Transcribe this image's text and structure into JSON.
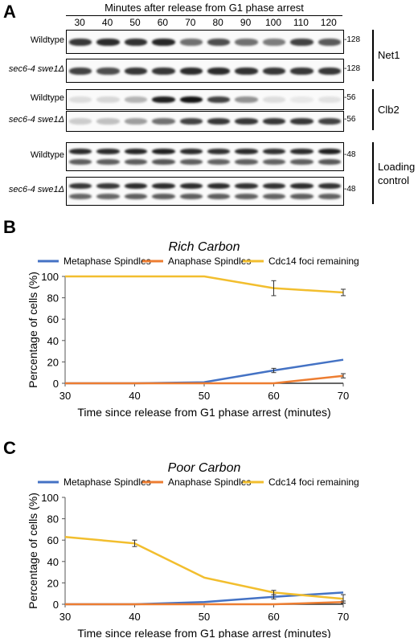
{
  "panelA": {
    "letter": "A",
    "time_header": "Minutes after release from G1 phase arrest",
    "timepoints": [
      "30",
      "40",
      "50",
      "60",
      "70",
      "80",
      "90",
      "100",
      "110",
      "120"
    ],
    "blots": [
      {
        "name": "Net1",
        "lanes": [
          {
            "label": "Wildtype",
            "mw": "128",
            "intensity": [
              0.85,
              0.9,
              0.88,
              0.92,
              0.6,
              0.75,
              0.6,
              0.55,
              0.8,
              0.7
            ],
            "doublet": false
          },
          {
            "label": "sec6-4 swe1Δ",
            "mw": "128",
            "intensity": [
              0.8,
              0.75,
              0.85,
              0.85,
              0.9,
              0.9,
              0.88,
              0.85,
              0.85,
              0.85
            ],
            "doublet": false
          }
        ]
      },
      {
        "name": "Clb2",
        "lanes": [
          {
            "label": "Wildtype",
            "mw": "56",
            "intensity": [
              0.12,
              0.15,
              0.3,
              0.95,
              1.0,
              0.8,
              0.45,
              0.12,
              0.08,
              0.1
            ],
            "doublet": false
          },
          {
            "label": "sec6-4 swe1Δ",
            "mw": "56",
            "intensity": [
              0.2,
              0.25,
              0.4,
              0.6,
              0.8,
              0.85,
              0.85,
              0.85,
              0.85,
              0.8
            ],
            "doublet": false
          }
        ]
      },
      {
        "name": "Loading control",
        "lanes": [
          {
            "label": "Wildtype",
            "mw": "48",
            "intensity": [
              0.9,
              0.9,
              0.92,
              0.95,
              0.9,
              0.88,
              0.9,
              0.88,
              0.9,
              0.95
            ],
            "doublet": true
          },
          {
            "label": "sec6-4 swe1Δ",
            "mw": "48",
            "intensity": [
              0.85,
              0.85,
              0.9,
              0.9,
              0.9,
              0.9,
              0.88,
              0.88,
              0.9,
              0.88
            ],
            "doublet": true
          }
        ]
      }
    ]
  },
  "panelB": {
    "letter": "B"
  },
  "panelC": {
    "letter": "C"
  },
  "chart_data": [
    {
      "type": "line",
      "title": "Rich Carbon",
      "xlabel": "Time since release from G1 phase arrest (minutes)",
      "ylabel": "Percentage of cells (%)",
      "x": [
        30,
        40,
        50,
        60,
        70
      ],
      "xlim": [
        30,
        70
      ],
      "ylim": [
        0,
        100
      ],
      "yticks": [
        0,
        20,
        40,
        60,
        80,
        100
      ],
      "legend": "top",
      "series": [
        {
          "name": "Metaphase Spindles",
          "color": "#4472C4",
          "values": [
            0,
            0,
            1,
            12,
            22
          ],
          "errors": [
            0,
            0,
            0,
            2,
            0
          ]
        },
        {
          "name": "Anaphase Spindles",
          "color": "#ED7D31",
          "values": [
            0,
            0,
            0,
            0,
            7
          ],
          "errors": [
            0,
            0,
            0,
            0,
            2
          ]
        },
        {
          "name": "Cdc14 foci remaining",
          "color": "#F2BE2E",
          "values": [
            100,
            100,
            100,
            89,
            85
          ],
          "errors": [
            0,
            0,
            0,
            7,
            3
          ]
        }
      ]
    },
    {
      "type": "line",
      "title": "Poor Carbon",
      "xlabel": "Time since release from G1 phase arrest (minutes)",
      "ylabel": "Percentage of cells (%)",
      "x": [
        30,
        40,
        50,
        60,
        70
      ],
      "xlim": [
        30,
        70
      ],
      "ylim": [
        0,
        100
      ],
      "yticks": [
        0,
        20,
        40,
        60,
        80,
        100
      ],
      "legend": "top",
      "series": [
        {
          "name": "Metaphase Spindles",
          "color": "#4472C4",
          "values": [
            0,
            0,
            2,
            7,
            11
          ],
          "errors": [
            0,
            0,
            0,
            2,
            0
          ]
        },
        {
          "name": "Anaphase Spindles",
          "color": "#ED7D31",
          "values": [
            0,
            0,
            0,
            0,
            2
          ],
          "errors": [
            0,
            0,
            0,
            0,
            1
          ]
        },
        {
          "name": "Cdc14 foci remaining",
          "color": "#F2BE2E",
          "values": [
            63,
            57,
            25,
            11,
            5
          ],
          "errors": [
            0,
            3,
            0,
            2,
            4
          ]
        }
      ]
    }
  ]
}
